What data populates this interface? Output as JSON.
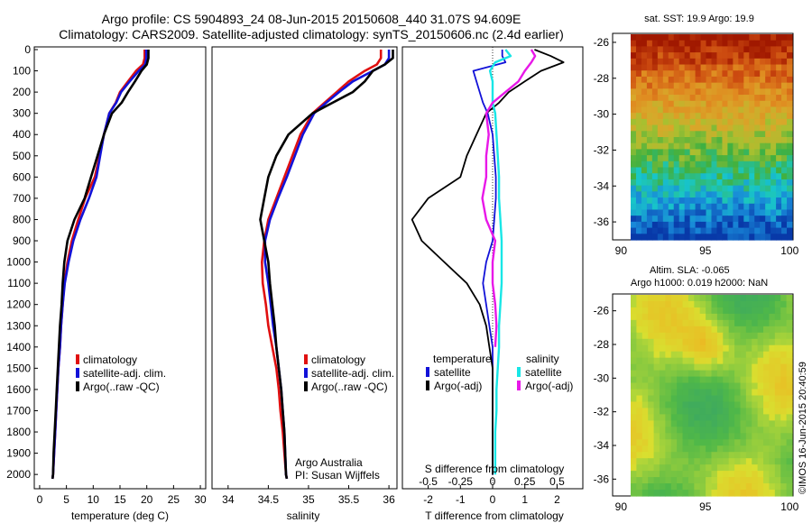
{
  "header": {
    "title1": "Argo profile: CS 5904893_24 08-Jun-2015 20150608_440 31.07S 94.609E",
    "title2": "Climatology: CARS2009. Satellite-adjusted climatology: synTS_20150606.nc (2.4d earlier)"
  },
  "colors": {
    "climatology": "#e01010",
    "satellite": "#1212d8",
    "argo": "#000000",
    "cyan": "#18e6e6",
    "magenta": "#e818e8"
  },
  "chart_data": [
    {
      "id": "temperature",
      "type": "line",
      "xlabel": "temperature (deg C)",
      "ylabel": "",
      "xlim": [
        -1,
        31
      ],
      "ylim": [
        0,
        2080
      ],
      "xticks": [
        "0",
        "5",
        "10",
        "15",
        "20",
        "25",
        "30"
      ],
      "yticks": [
        "0",
        "100",
        "200",
        "300",
        "400",
        "500",
        "600",
        "700",
        "800",
        "900",
        "1000",
        "1100",
        "1200",
        "1300",
        "1400",
        "1500",
        "1600",
        "1700",
        "1800",
        "1900",
        "2000"
      ],
      "legend": [
        "climatology",
        "satellite-adj. clim.",
        "Argo(..raw -QC)"
      ],
      "series": [
        {
          "name": "climatology",
          "color": "#e01010",
          "x": [
            19.6,
            19.6,
            19.3,
            18.0,
            16.5,
            15.0,
            14.2,
            13.0,
            12.0,
            11.2,
            10.3,
            8.5,
            7.2,
            6.0,
            5.2,
            4.6,
            4.3,
            4.0,
            3.8,
            3.5,
            3.3,
            3.1,
            2.9,
            2.7,
            2.5,
            2.4
          ],
          "y": [
            0,
            40,
            70,
            100,
            150,
            200,
            250,
            300,
            400,
            500,
            600,
            700,
            800,
            900,
            1000,
            1100,
            1200,
            1300,
            1400,
            1500,
            1600,
            1700,
            1800,
            1900,
            2000,
            2020
          ]
        },
        {
          "name": "satellite-adj. clim.",
          "color": "#1212d8",
          "x": [
            19.9,
            19.9,
            19.7,
            18.5,
            16.8,
            15.2,
            14.3,
            13.0,
            12.0,
            11.3,
            10.6,
            9.2,
            7.6,
            6.3,
            5.4,
            4.7,
            4.3,
            4.0,
            3.8,
            3.5,
            3.3,
            3.1,
            2.9,
            2.7,
            2.5,
            2.4
          ],
          "y": [
            0,
            40,
            70,
            100,
            150,
            200,
            250,
            300,
            400,
            500,
            600,
            700,
            800,
            900,
            1000,
            1100,
            1200,
            1300,
            1400,
            1500,
            1600,
            1700,
            1800,
            1900,
            2000,
            2020
          ]
        },
        {
          "name": "Argo(..raw -QC)",
          "color": "#000000",
          "x": [
            20.3,
            20.3,
            20.0,
            19.0,
            17.8,
            16.5,
            15.3,
            13.5,
            12.0,
            10.8,
            9.6,
            8.4,
            6.5,
            5.2,
            4.6,
            4.3,
            4.1,
            3.8,
            3.6,
            3.4,
            3.2,
            3.0,
            2.8,
            2.6,
            2.5,
            2.4
          ],
          "y": [
            0,
            40,
            70,
            100,
            150,
            200,
            250,
            300,
            400,
            500,
            600,
            700,
            800,
            900,
            1000,
            1100,
            1200,
            1300,
            1400,
            1500,
            1600,
            1700,
            1800,
            1900,
            2000,
            2020
          ]
        }
      ]
    },
    {
      "id": "salinity",
      "type": "line",
      "xlabel": "salinity",
      "ylabel": "",
      "xlim": [
        33.8,
        36.1
      ],
      "ylim": [
        0,
        2080
      ],
      "xticks": [
        "34",
        "34.5",
        "35",
        "35.5",
        "36"
      ],
      "legend": [
        "climatology",
        "satellite-adj. clim.",
        "Argo(..raw -QC)"
      ],
      "annotation1": "Argo Australia",
      "annotation2": "PI: Susan Wijffels",
      "series": [
        {
          "name": "climatology",
          "color": "#e01010",
          "x": [
            35.9,
            35.9,
            35.85,
            35.7,
            35.5,
            35.35,
            35.2,
            35.05,
            34.9,
            34.8,
            34.7,
            34.6,
            34.5,
            34.45,
            34.42,
            34.43,
            34.47,
            34.5,
            34.55,
            34.6,
            34.63,
            34.65,
            34.68,
            34.7,
            34.72,
            34.73
          ],
          "y": [
            0,
            40,
            70,
            100,
            150,
            200,
            250,
            300,
            400,
            500,
            600,
            700,
            800,
            900,
            1000,
            1100,
            1200,
            1300,
            1400,
            1500,
            1600,
            1700,
            1800,
            1900,
            2000,
            2020
          ]
        },
        {
          "name": "satellite-adj. clim.",
          "color": "#1212d8",
          "x": [
            36.0,
            36.0,
            35.95,
            35.8,
            35.55,
            35.38,
            35.22,
            35.07,
            34.93,
            34.83,
            34.73,
            34.62,
            34.52,
            34.46,
            34.46,
            34.5,
            34.53,
            34.56,
            34.6,
            34.63,
            34.66,
            34.68,
            34.7,
            34.71,
            34.72,
            34.73
          ],
          "y": [
            0,
            40,
            70,
            100,
            150,
            200,
            250,
            300,
            400,
            500,
            600,
            700,
            800,
            900,
            1000,
            1100,
            1200,
            1300,
            1400,
            1500,
            1600,
            1700,
            1800,
            1900,
            2000,
            2020
          ]
        },
        {
          "name": "Argo(..raw -QC)",
          "color": "#000000",
          "x": [
            36.05,
            36.05,
            35.95,
            35.8,
            35.7,
            35.55,
            35.3,
            35.05,
            34.75,
            34.6,
            34.5,
            34.45,
            34.4,
            34.45,
            34.5,
            34.52,
            34.55,
            34.58,
            34.6,
            34.63,
            34.66,
            34.68,
            34.7,
            34.71,
            34.72,
            34.73
          ],
          "y": [
            0,
            40,
            70,
            100,
            150,
            200,
            250,
            300,
            400,
            500,
            600,
            700,
            800,
            900,
            1000,
            1100,
            1200,
            1300,
            1400,
            1500,
            1600,
            1700,
            1800,
            1900,
            2000,
            2020
          ]
        }
      ]
    },
    {
      "id": "difference",
      "type": "line",
      "xlabel_top": "S difference from climatology",
      "xlabel": "T difference from climatology",
      "xlim": [
        -2.8,
        2.8
      ],
      "ylim": [
        0,
        2080
      ],
      "xticks": [
        "-2",
        "-1",
        "0",
        "1",
        "2"
      ],
      "sticks": [
        "-0.5",
        "-0.25",
        "0",
        "0.25",
        "0.5"
      ],
      "legend_left_title": "temperature",
      "legend_right_title": "salinity",
      "legend": [
        "satellite",
        "Argo(-adj)",
        "satellite",
        "Argo(-adj)"
      ],
      "series": [
        {
          "name": "T satellite",
          "color": "#1212d8",
          "x": [
            0.3,
            0.3,
            0.4,
            -0.6,
            -0.5,
            -0.4,
            -0.3,
            -0.15,
            0.0,
            0.05,
            0.1,
            0.1,
            0.05,
            0.0,
            -0.2,
            -0.3,
            -0.2,
            -0.1,
            0.0,
            0.0,
            0.0,
            0.0,
            0.0,
            0.0,
            0.0
          ],
          "y": [
            0,
            30,
            60,
            100,
            150,
            200,
            250,
            300,
            400,
            500,
            600,
            700,
            800,
            900,
            1000,
            1100,
            1200,
            1300,
            1400,
            1500,
            1600,
            1700,
            1800,
            1900,
            2000
          ]
        },
        {
          "name": "T Argo(-adj)",
          "color": "#000000",
          "x": [
            1.3,
            1.8,
            2.2,
            1.5,
            1.0,
            0.5,
            0.2,
            -0.2,
            -0.5,
            -0.8,
            -1.0,
            -2.0,
            -2.5,
            -2.2,
            -1.5,
            -0.8,
            -0.4,
            -0.2,
            -0.1,
            0.0,
            0.0,
            0.0,
            0.0,
            0.0,
            0.0
          ],
          "y": [
            0,
            30,
            60,
            100,
            150,
            200,
            250,
            300,
            400,
            500,
            600,
            700,
            800,
            900,
            1000,
            1100,
            1200,
            1300,
            1400,
            1500,
            1600,
            1700,
            1800,
            1900,
            2000
          ]
        },
        {
          "name": "S satellite",
          "color": "#18e6e6",
          "sx": [
            0.1,
            0.14,
            0.02,
            -0.02,
            0.0,
            0.0,
            0.0,
            0.02,
            0.03,
            0.04,
            0.05,
            0.05,
            0.06,
            0.07,
            0.07,
            0.07,
            0.06,
            0.05,
            0.05,
            0.04,
            0.03,
            0.03,
            0.02,
            0.02,
            0.02
          ],
          "y": [
            0,
            30,
            60,
            100,
            150,
            200,
            250,
            300,
            400,
            500,
            600,
            700,
            800,
            900,
            1000,
            1100,
            1200,
            1300,
            1400,
            1500,
            1600,
            1700,
            1800,
            1900,
            2000
          ]
        },
        {
          "name": "S Argo(-adj)",
          "color": "#e818e8",
          "sx": [
            0.3,
            0.33,
            0.3,
            0.25,
            0.2,
            0.1,
            0.0,
            -0.05,
            -0.03,
            -0.05,
            -0.05,
            -0.08,
            -0.05,
            0.02,
            0.0,
            0.0,
            0.02,
            0.03,
            0.02
          ],
          "y": [
            0,
            30,
            60,
            100,
            150,
            200,
            250,
            300,
            400,
            500,
            600,
            700,
            800,
            900,
            1000,
            1100,
            1200,
            1300,
            1400
          ]
        }
      ]
    },
    {
      "id": "sst-map",
      "type": "heatmap",
      "title": "sat. SST: 19.9 Argo: 19.9",
      "xticks": [
        "90",
        "95",
        "100"
      ],
      "yticks": [
        "-26",
        "-28",
        "-30",
        "-32",
        "-34",
        "-36"
      ],
      "xlim": [
        89.5,
        100.2
      ],
      "ylim": [
        -37,
        -25.5
      ],
      "values_description": "warm (red/orange) in north, green band near -31, blue/cyan in south"
    },
    {
      "id": "sla-map",
      "type": "heatmap",
      "title1": "Altim. SLA: -0.065",
      "title2": "Argo h1000: 0.019 h2000: NaN",
      "xticks": [
        "90",
        "95",
        "100"
      ],
      "yticks": [
        "-26",
        "-28",
        "-30",
        "-32",
        "-34",
        "-36"
      ],
      "xlim": [
        89.5,
        100.2
      ],
      "ylim": [
        -37,
        -25
      ]
    }
  ],
  "legend_labels": {
    "climatology": "climatology",
    "satellite_adj": "satellite-adj. clim.",
    "argo_raw": "Argo(..raw -QC)",
    "temperature": "temperature",
    "salinity": "salinity",
    "satellite": "satellite",
    "argo_adj": "Argo(-adj)"
  },
  "footer": {
    "stamp": "©IMOS 16-Jun-2015 20:40:59"
  }
}
